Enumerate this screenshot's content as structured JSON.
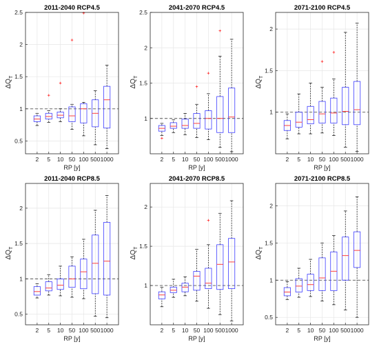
{
  "chart_data": [
    {
      "type": "box",
      "title": "2011-2040 RCP4.5",
      "xlabel": "RP [y]",
      "ylabel": "ΔQ",
      "ylabel_sub": "T",
      "categories": [
        "2",
        "5",
        "10",
        "50",
        "100",
        "500",
        "1000"
      ],
      "ylim": [
        0.3,
        2.5
      ],
      "yticks": [
        "0.5",
        "1",
        "1.5",
        "2",
        "2.5"
      ],
      "reference_line": 1,
      "boxes": [
        {
          "whisker_low": 0.74,
          "q1": 0.8,
          "median": 0.84,
          "q3": 0.89,
          "whisker_high": 0.93,
          "outliers": []
        },
        {
          "whisker_low": 0.79,
          "q1": 0.84,
          "median": 0.88,
          "q3": 0.93,
          "whisker_high": 0.97,
          "outliers": [
            1.21
          ]
        },
        {
          "whisker_low": 0.8,
          "q1": 0.86,
          "median": 0.9,
          "q3": 0.95,
          "whisker_high": 1.0,
          "outliers": [
            1.4
          ]
        },
        {
          "whisker_low": 0.68,
          "q1": 0.8,
          "median": 0.89,
          "q3": 1.03,
          "whisker_high": 1.07,
          "outliers": [
            2.07
          ]
        },
        {
          "whisker_low": 0.58,
          "q1": 0.78,
          "median": 1.0,
          "q3": 1.08,
          "whisker_high": 1.1,
          "outliers": [
            2.49
          ]
        },
        {
          "whisker_low": 0.44,
          "q1": 0.72,
          "median": 0.93,
          "q3": 1.14,
          "whisker_high": 1.28,
          "outliers": []
        },
        {
          "whisker_low": 0.38,
          "q1": 0.7,
          "median": 1.14,
          "q3": 1.35,
          "whisker_high": 1.68,
          "outliers": []
        }
      ]
    },
    {
      "type": "box",
      "title": "2041-2070 RCP4.5",
      "xlabel": "RP [y]",
      "ylabel": "ΔQ",
      "ylabel_sub": "T",
      "categories": [
        "2",
        "5",
        "10",
        "50",
        "100",
        "500",
        "1000"
      ],
      "ylim": [
        0.5,
        2.5
      ],
      "yticks": [
        "1",
        "1.5",
        "2",
        "2.5"
      ],
      "reference_line": 1,
      "boxes": [
        {
          "whisker_low": 0.76,
          "q1": 0.82,
          "median": 0.86,
          "q3": 0.9,
          "whisker_high": 0.93,
          "outliers": [
            0.72
          ]
        },
        {
          "whisker_low": 0.8,
          "q1": 0.86,
          "median": 0.89,
          "q3": 0.94,
          "whisker_high": 0.98,
          "outliers": []
        },
        {
          "whisker_low": 0.77,
          "q1": 0.86,
          "median": 0.9,
          "q3": 0.99,
          "whisker_high": 1.07,
          "outliers": []
        },
        {
          "whisker_low": 0.73,
          "q1": 0.86,
          "median": 0.93,
          "q3": 1.07,
          "whisker_high": 1.2,
          "outliers": [
            1.45
          ]
        },
        {
          "whisker_low": 0.7,
          "q1": 0.85,
          "median": 1.0,
          "q3": 1.11,
          "whisker_high": 1.35,
          "outliers": [
            1.64
          ]
        },
        {
          "whisker_low": 0.59,
          "q1": 0.8,
          "median": 1.0,
          "q3": 1.31,
          "whisker_high": 1.88,
          "outliers": [
            2.24
          ]
        },
        {
          "whisker_low": 0.53,
          "q1": 0.8,
          "median": 1.02,
          "q3": 1.43,
          "whisker_high": 2.12,
          "outliers": []
        }
      ]
    },
    {
      "type": "box",
      "title": "2071-2100 RCP4.5",
      "xlabel": "RP [y]",
      "ylabel": "ΔQ",
      "ylabel_sub": "T",
      "categories": [
        "2",
        "5",
        "10",
        "50",
        "100",
        "500",
        "1000"
      ],
      "ylim": [
        0.5,
        2.2
      ],
      "yticks": [
        "1",
        "1.5",
        "2"
      ],
      "reference_line": 1,
      "boxes": [
        {
          "whisker_low": 0.68,
          "q1": 0.78,
          "median": 0.84,
          "q3": 0.9,
          "whisker_high": 0.98,
          "outliers": []
        },
        {
          "whisker_low": 0.74,
          "q1": 0.82,
          "median": 0.88,
          "q3": 1.0,
          "whisker_high": 1.22,
          "outliers": []
        },
        {
          "whisker_low": 0.74,
          "q1": 0.86,
          "median": 0.91,
          "q3": 1.07,
          "whisker_high": 1.35,
          "outliers": []
        },
        {
          "whisker_low": 0.75,
          "q1": 0.87,
          "median": 0.98,
          "q3": 1.13,
          "whisker_high": 1.3,
          "outliers": [
            1.61
          ]
        },
        {
          "whisker_low": 0.72,
          "q1": 0.87,
          "median": 0.99,
          "q3": 1.17,
          "whisker_high": 1.4,
          "outliers": [
            1.72
          ]
        },
        {
          "whisker_low": 0.58,
          "q1": 0.85,
          "median": 1.01,
          "q3": 1.3,
          "whisker_high": 1.96,
          "outliers": []
        },
        {
          "whisker_low": 0.53,
          "q1": 0.85,
          "median": 1.03,
          "q3": 1.37,
          "whisker_high": 2.07,
          "outliers": []
        }
      ]
    },
    {
      "type": "box",
      "title": "2011-2040 RCP8.5",
      "xlabel": "RP [y]",
      "ylabel": "ΔQ",
      "ylabel_sub": "T",
      "categories": [
        "2",
        "5",
        "10",
        "50",
        "100",
        "500",
        "1000"
      ],
      "ylim": [
        0.35,
        2.35
      ],
      "yticks": [
        "0.5",
        "1",
        "1.5",
        "2"
      ],
      "reference_line": 1,
      "boxes": [
        {
          "whisker_low": 0.73,
          "q1": 0.77,
          "median": 0.82,
          "q3": 0.89,
          "whisker_high": 0.93,
          "outliers": []
        },
        {
          "whisker_low": 0.77,
          "q1": 0.83,
          "median": 0.87,
          "q3": 0.96,
          "whisker_high": 1.06,
          "outliers": []
        },
        {
          "whisker_low": 0.76,
          "q1": 0.85,
          "median": 0.91,
          "q3": 1.0,
          "whisker_high": 1.18,
          "outliers": []
        },
        {
          "whisker_low": 0.74,
          "q1": 0.88,
          "median": 1.0,
          "q3": 1.18,
          "whisker_high": 1.31,
          "outliers": []
        },
        {
          "whisker_low": 0.72,
          "q1": 0.86,
          "median": 1.1,
          "q3": 1.28,
          "whisker_high": 1.56,
          "outliers": []
        },
        {
          "whisker_low": 0.47,
          "q1": 0.79,
          "median": 1.22,
          "q3": 1.62,
          "whisker_high": 1.97,
          "outliers": []
        },
        {
          "whisker_low": 0.45,
          "q1": 0.77,
          "median": 1.25,
          "q3": 1.8,
          "whisker_high": 2.18,
          "outliers": []
        }
      ]
    },
    {
      "type": "box",
      "title": "2041-2070 RCP8.5",
      "xlabel": "RP [y]",
      "ylabel": "ΔQ",
      "ylabel_sub": "T",
      "categories": [
        "2",
        "5",
        "10",
        "50",
        "100",
        "500",
        "1000"
      ],
      "ylim": [
        0.5,
        2.3
      ],
      "yticks": [
        "1",
        "1.5",
        "2"
      ],
      "reference_line": 1,
      "boxes": [
        {
          "whisker_low": 0.73,
          "q1": 0.83,
          "median": 0.88,
          "q3": 0.92,
          "whisker_high": 0.98,
          "outliers": []
        },
        {
          "whisker_low": 0.85,
          "q1": 0.91,
          "median": 0.94,
          "q3": 0.98,
          "whisker_high": 1.08,
          "outliers": []
        },
        {
          "whisker_low": 0.87,
          "q1": 0.92,
          "median": 0.98,
          "q3": 1.03,
          "whisker_high": 1.11,
          "outliers": []
        },
        {
          "whisker_low": 0.8,
          "q1": 0.94,
          "median": 1.12,
          "q3": 1.18,
          "whisker_high": 1.46,
          "outliers": []
        },
        {
          "whisker_low": 0.71,
          "q1": 0.96,
          "median": 1.03,
          "q3": 1.22,
          "whisker_high": 1.52,
          "outliers": [
            1.83
          ]
        },
        {
          "whisker_low": 0.63,
          "q1": 0.95,
          "median": 1.27,
          "q3": 1.52,
          "whisker_high": 1.92,
          "outliers": []
        },
        {
          "whisker_low": 0.55,
          "q1": 0.96,
          "median": 1.3,
          "q3": 1.6,
          "whisker_high": 2.08,
          "outliers": []
        }
      ]
    },
    {
      "type": "box",
      "title": "2071-2100 RCP8.5",
      "xlabel": "RP [y]",
      "ylabel": "ΔQ",
      "ylabel_sub": "T",
      "categories": [
        "2",
        "5",
        "10",
        "50",
        "100",
        "500",
        "1000"
      ],
      "ylim": [
        0.4,
        2.3
      ],
      "yticks": [
        "0.5",
        "1",
        "1.5",
        "2"
      ],
      "reference_line": 1,
      "boxes": [
        {
          "whisker_low": 0.74,
          "q1": 0.79,
          "median": 0.84,
          "q3": 0.9,
          "whisker_high": 0.98,
          "outliers": []
        },
        {
          "whisker_low": 0.77,
          "q1": 0.84,
          "median": 0.92,
          "q3": 1.02,
          "whisker_high": 1.16,
          "outliers": []
        },
        {
          "whisker_low": 0.78,
          "q1": 0.86,
          "median": 0.94,
          "q3": 1.08,
          "whisker_high": 1.28,
          "outliers": []
        },
        {
          "whisker_low": 0.72,
          "q1": 0.86,
          "median": 1.03,
          "q3": 1.3,
          "whisker_high": 1.5,
          "outliers": []
        },
        {
          "whisker_low": 0.67,
          "q1": 0.86,
          "median": 1.12,
          "q3": 1.38,
          "whisker_high": 1.6,
          "outliers": []
        },
        {
          "whisker_low": 0.6,
          "q1": 1.0,
          "median": 1.33,
          "q3": 1.58,
          "whisker_high": 1.93,
          "outliers": []
        },
        {
          "whisker_low": 0.5,
          "q1": 1.17,
          "median": 1.4,
          "q3": 1.65,
          "whisker_high": 2.12,
          "outliers": []
        }
      ]
    }
  ],
  "colors": {
    "box": "#3b3bff",
    "median": "#ff2a2a",
    "outlier": "#ff2a2a",
    "whisker": "#000000",
    "reference_line": "#555555",
    "grid": "#e6e6e6",
    "axes": "#262626"
  }
}
